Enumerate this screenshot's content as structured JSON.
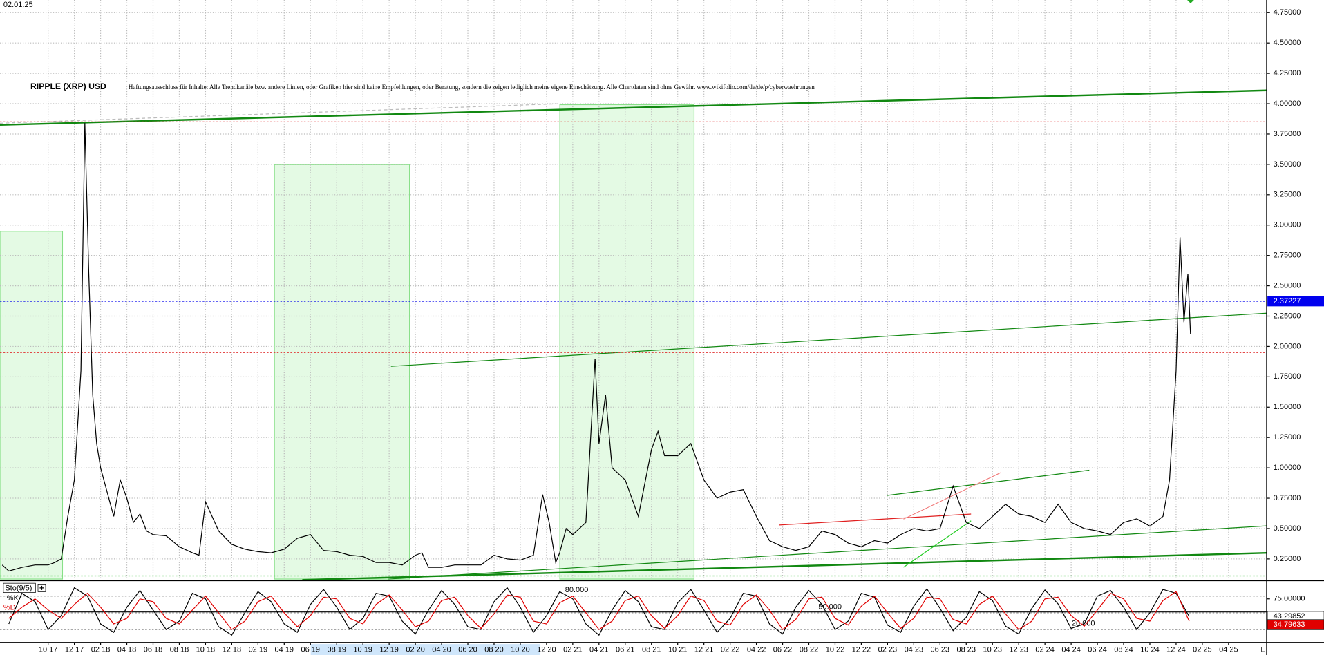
{
  "chart_data": [
    {
      "type": "line",
      "title": "RIPPLE (XRP) USD",
      "date": "02.01.25",
      "disclaimer": "Haftungsausschluss für Inhalte: Alle Trendkanäle bzw. andere Linien, oder Grafiken hier sind keine Empfehlungen, oder Beratung, sondern die zeigen lediglich meine eigene Einschätzung. Alle Chartdaten sind ohne Gewähr. www.wikifolio.com/de/de/p/cyberwaehrungen",
      "x": [
        -3.5,
        -3,
        -2,
        -1,
        0,
        0.5,
        1,
        1.5,
        2,
        2.5,
        2.8,
        3.1,
        3.4,
        3.7,
        4,
        4.5,
        5,
        5.5,
        6,
        6.5,
        7,
        7.5,
        8,
        9,
        10,
        11,
        11.5,
        12,
        13,
        14,
        15,
        16,
        17,
        18,
        19,
        20,
        21,
        22,
        23,
        24,
        25,
        26,
        27,
        28,
        28.5,
        29,
        30,
        31,
        32,
        33,
        34,
        35,
        36,
        37,
        37.7,
        38.2,
        38.7,
        39,
        39.5,
        40,
        41,
        41.7,
        42,
        42.5,
        43,
        44,
        45,
        46,
        46.5,
        47,
        48,
        49,
        50,
        51,
        52,
        53,
        54,
        55,
        56,
        57,
        58,
        59,
        60,
        61,
        62,
        63,
        64,
        65,
        66,
        67,
        68,
        69,
        70,
        71,
        72,
        73,
        74,
        75,
        76,
        77,
        78,
        79,
        80,
        81,
        82,
        83,
        84,
        85,
        85.5,
        86,
        86.3,
        86.6,
        86.9,
        87.1
      ],
      "series": [
        {
          "color": "#000000",
          "values": [
            0.2,
            0.15,
            0.18,
            0.2,
            0.2,
            0.22,
            0.25,
            0.6,
            0.9,
            1.8,
            3.84,
            2.6,
            1.6,
            1.2,
            1.0,
            0.8,
            0.6,
            0.9,
            0.75,
            0.55,
            0.62,
            0.48,
            0.45,
            0.44,
            0.35,
            0.3,
            0.28,
            0.72,
            0.48,
            0.37,
            0.33,
            0.31,
            0.3,
            0.33,
            0.42,
            0.45,
            0.32,
            0.31,
            0.28,
            0.27,
            0.22,
            0.22,
            0.2,
            0.28,
            0.3,
            0.18,
            0.18,
            0.2,
            0.2,
            0.2,
            0.28,
            0.25,
            0.24,
            0.28,
            0.78,
            0.55,
            0.22,
            0.3,
            0.5,
            0.45,
            0.55,
            1.9,
            1.2,
            1.6,
            1.0,
            0.9,
            0.6,
            1.15,
            1.3,
            1.1,
            1.1,
            1.2,
            0.9,
            0.75,
            0.8,
            0.82,
            0.6,
            0.4,
            0.35,
            0.32,
            0.35,
            0.48,
            0.45,
            0.38,
            0.35,
            0.4,
            0.38,
            0.45,
            0.5,
            0.48,
            0.5,
            0.85,
            0.55,
            0.5,
            0.6,
            0.7,
            0.62,
            0.6,
            0.55,
            0.7,
            0.55,
            0.5,
            0.48,
            0.45,
            0.55,
            0.58,
            0.52,
            0.6,
            0.9,
            1.8,
            2.9,
            2.2,
            2.6,
            2.1
          ]
        }
      ],
      "xlim": [
        -3.67,
        92.9
      ],
      "ylim": [
        0.084,
        4.854
      ],
      "xticks": [
        {
          "value": 0,
          "label": "10 17"
        },
        {
          "value": 2,
          "label": "12 17"
        },
        {
          "value": 4,
          "label": "02 18"
        },
        {
          "value": 6,
          "label": "04 18"
        },
        {
          "value": 8,
          "label": "06 18"
        },
        {
          "value": 10,
          "label": "08 18"
        },
        {
          "value": 12,
          "label": "10 18"
        },
        {
          "value": 14,
          "label": "12 18"
        },
        {
          "value": 16,
          "label": "02 19"
        },
        {
          "value": 18,
          "label": "04 19"
        },
        {
          "value": 20,
          "label": "06 19"
        },
        {
          "value": 22,
          "label": "08 19"
        },
        {
          "value": 24,
          "label": "10 19"
        },
        {
          "value": 26,
          "label": "12 19"
        },
        {
          "value": 28,
          "label": "02 20"
        },
        {
          "value": 30,
          "label": "04 20"
        },
        {
          "value": 32,
          "label": "06 20"
        },
        {
          "value": 34,
          "label": "08 20"
        },
        {
          "value": 36,
          "label": "10 20"
        },
        {
          "value": 38,
          "label": "12 20"
        },
        {
          "value": 40,
          "label": "02 21"
        },
        {
          "value": 42,
          "label": "04 21"
        },
        {
          "value": 44,
          "label": "06 21"
        },
        {
          "value": 46,
          "label": "08 21"
        },
        {
          "value": 48,
          "label": "10 21"
        },
        {
          "value": 50,
          "label": "12 21"
        },
        {
          "value": 52,
          "label": "02 22"
        },
        {
          "value": 54,
          "label": "04 22"
        },
        {
          "value": 56,
          "label": "06 22"
        },
        {
          "value": 58,
          "label": "08 22"
        },
        {
          "value": 60,
          "label": "10 22"
        },
        {
          "value": 62,
          "label": "12 22"
        },
        {
          "value": 64,
          "label": "02 23"
        },
        {
          "value": 66,
          "label": "04 23"
        },
        {
          "value": 68,
          "label": "06 23"
        },
        {
          "value": 70,
          "label": "08 23"
        },
        {
          "value": 72,
          "label": "10 23"
        },
        {
          "value": 74,
          "label": "12 23"
        },
        {
          "value": 76,
          "label": "02 24"
        },
        {
          "value": 78,
          "label": "04 24"
        },
        {
          "value": 80,
          "label": "06 24"
        },
        {
          "value": 82,
          "label": "08 24"
        },
        {
          "value": 84,
          "label": "10 24"
        },
        {
          "value": 86,
          "label": "12 24"
        },
        {
          "value": 88,
          "label": "02 25"
        },
        {
          "value": 90,
          "label": "04 25"
        }
      ],
      "yticks": [
        {
          "value": 0.25,
          "label": "0.25000"
        },
        {
          "value": 0.5,
          "label": "0.50000"
        },
        {
          "value": 0.75,
          "label": "0.75000"
        },
        {
          "value": 1,
          "label": "1.00000"
        },
        {
          "value": 1.25,
          "label": "1.25000"
        },
        {
          "value": 1.5,
          "label": "1.50000"
        },
        {
          "value": 1.75,
          "label": "1.75000"
        },
        {
          "value": 2,
          "label": "2.00000"
        },
        {
          "value": 2.25,
          "label": "2.25000"
        },
        {
          "value": 2.5,
          "label": "2.50000"
        },
        {
          "value": 2.75,
          "label": "2.75000"
        },
        {
          "value": 3,
          "label": "3.00000"
        },
        {
          "value": 3.25,
          "label": "3.25000"
        },
        {
          "value": 3.5,
          "label": "3.50000"
        },
        {
          "value": 3.75,
          "label": "3.75000"
        },
        {
          "value": 4,
          "label": "4.00000"
        },
        {
          "value": 4.25,
          "label": "4.25000"
        },
        {
          "value": 4.5,
          "label": "4.50000"
        },
        {
          "value": 4.75,
          "label": "4.75000"
        }
      ],
      "grid": true,
      "levels": [
        {
          "value": 3.85,
          "color": "#e03030"
        },
        {
          "value": 1.95,
          "color": "#e03030"
        },
        {
          "value": 0.11,
          "color": "#22bb22"
        }
      ],
      "current": {
        "value": 2.37227,
        "color": "#0000ee"
      }
    },
    {
      "type": "line",
      "title": "Sto(9/5)",
      "corner_label": "L",
      "x": [
        -3,
        -2,
        -1,
        0,
        1,
        2,
        3,
        4,
        5,
        6,
        7,
        8,
        9,
        10,
        11,
        12,
        13,
        14,
        15,
        16,
        17,
        18,
        19,
        20,
        21,
        22,
        23,
        24,
        25,
        26,
        27,
        28,
        29,
        30,
        31,
        32,
        33,
        34,
        35,
        36,
        37,
        38,
        39,
        40,
        41,
        42,
        43,
        44,
        45,
        46,
        47,
        48,
        49,
        50,
        51,
        52,
        53,
        54,
        55,
        56,
        57,
        58,
        59,
        60,
        61,
        62,
        63,
        64,
        65,
        66,
        67,
        68,
        69,
        70,
        71,
        72,
        73,
        74,
        75,
        76,
        77,
        78,
        79,
        80,
        81,
        82,
        83,
        84,
        85,
        86,
        87
      ],
      "series": [
        {
          "name": "%K",
          "color": "#000000",
          "values": [
            30,
            85,
            70,
            20,
            45,
            95,
            80,
            30,
            15,
            60,
            90,
            55,
            20,
            35,
            85,
            75,
            25,
            10,
            50,
            88,
            70,
            30,
            15,
            65,
            92,
            60,
            20,
            40,
            85,
            80,
            35,
            12,
            55,
            90,
            65,
            25,
            20,
            70,
            95,
            60,
            15,
            45,
            88,
            75,
            30,
            10,
            55,
            90,
            70,
            25,
            20,
            68,
            92,
            55,
            15,
            40,
            85,
            80,
            30,
            12,
            60,
            90,
            65,
            20,
            35,
            85,
            78,
            28,
            15,
            62,
            93,
            58,
            18,
            42,
            88,
            72,
            26,
            12,
            58,
            91,
            66,
            22,
            30,
            80,
            90,
            60,
            20,
            50,
            92,
            85,
            43.29852
          ]
        },
        {
          "name": "%D",
          "color": "#e00000",
          "values": [
            40,
            60,
            75,
            55,
            40,
            65,
            85,
            60,
            30,
            40,
            75,
            70,
            40,
            30,
            55,
            80,
            50,
            20,
            35,
            70,
            80,
            50,
            25,
            45,
            78,
            75,
            40,
            30,
            65,
            82,
            55,
            25,
            35,
            72,
            78,
            45,
            22,
            48,
            82,
            78,
            35,
            30,
            68,
            80,
            50,
            20,
            35,
            72,
            80,
            45,
            22,
            45,
            80,
            72,
            35,
            28,
            65,
            82,
            55,
            20,
            38,
            75,
            78,
            40,
            28,
            62,
            80,
            50,
            22,
            40,
            78,
            75,
            38,
            30,
            65,
            80,
            48,
            20,
            35,
            75,
            78,
            45,
            26,
            55,
            85,
            75,
            40,
            35,
            72,
            88,
            34.79633
          ]
        }
      ],
      "ylim": [
        0,
        100
      ],
      "yticks": [
        {
          "value": 75,
          "label": "75.00000"
        }
      ],
      "levels": [
        {
          "value": 80,
          "label": "80.000"
        },
        {
          "value": 50,
          "label": "50.000"
        },
        {
          "value": 20,
          "label": "20.000"
        }
      ]
    }
  ]
}
